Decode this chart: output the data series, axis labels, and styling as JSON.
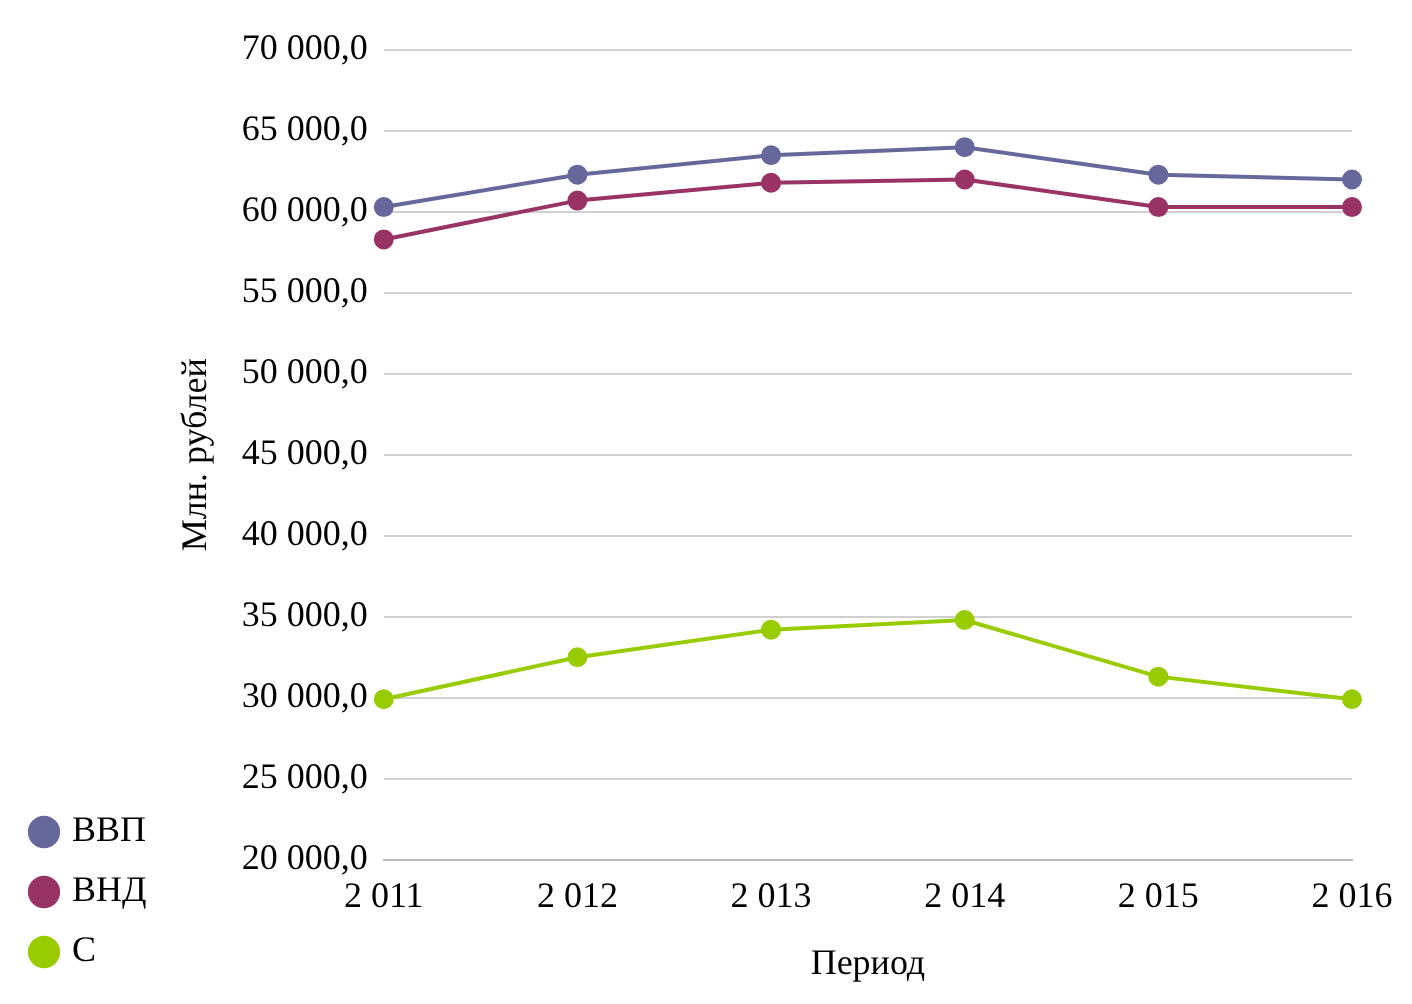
{
  "chart_data": {
    "type": "line",
    "xlabel": "Период",
    "ylabel": "Млн. рублей",
    "categories": [
      "2 011",
      "2 012",
      "2 013",
      "2 014",
      "2 015",
      "2 016"
    ],
    "series": [
      {
        "name": "ВВП",
        "color": "#66689c",
        "values": [
          60300,
          62300,
          63500,
          64000,
          62300,
          62000
        ]
      },
      {
        "name": "ВНД",
        "color": "#993366",
        "values": [
          58300,
          60700,
          61800,
          62000,
          60300,
          60300
        ]
      },
      {
        "name": "С",
        "color": "#99cc00",
        "values": [
          29900,
          32500,
          34200,
          34800,
          31300,
          29900
        ]
      }
    ],
    "ylim": [
      20000,
      70000
    ],
    "yticks": [
      {
        "value": 20000,
        "label": "20 000,0"
      },
      {
        "value": 25000,
        "label": "25 000,0"
      },
      {
        "value": 30000,
        "label": "30 000,0"
      },
      {
        "value": 35000,
        "label": "35 000,0"
      },
      {
        "value": 40000,
        "label": "40 000,0"
      },
      {
        "value": 45000,
        "label": "45 000,0"
      },
      {
        "value": 50000,
        "label": "50 000,0"
      },
      {
        "value": 55000,
        "label": "55 000,0"
      },
      {
        "value": 60000,
        "label": "60 000,0"
      },
      {
        "value": 65000,
        "label": "65 000,0"
      },
      {
        "value": 70000,
        "label": "70 000,0"
      }
    ],
    "grid": "y",
    "legend": "bottom left",
    "marker": "circle",
    "line_style": "solid"
  }
}
